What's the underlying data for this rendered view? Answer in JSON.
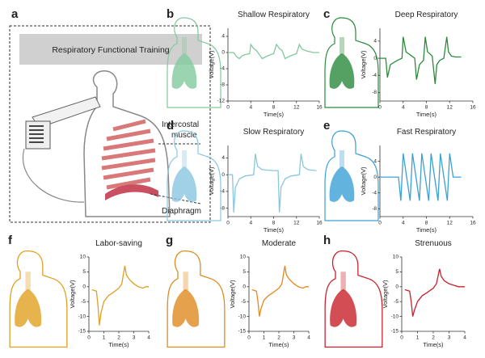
{
  "panel_labels": [
    "a",
    "b",
    "c",
    "d",
    "e",
    "f",
    "g",
    "h"
  ],
  "schematic": {
    "header": "Respiratory Functional Training",
    "muscle_label": [
      "Intercostal",
      "muscle"
    ],
    "diaphragm_label": "Diaphragm"
  },
  "chart_data": [
    {
      "type": "line",
      "title": "Shallow Respiratory",
      "xlabel": "Time(s)",
      "ylabel": "Voltage(V)",
      "color": "#82c99c",
      "x": [
        0,
        1,
        1.5,
        2,
        2.5,
        3,
        3.8,
        4,
        4.5,
        5,
        5.5,
        6,
        7,
        7.5,
        8,
        8.5,
        9,
        9.5,
        10,
        11,
        11.5,
        12,
        12.5,
        13,
        14,
        15,
        16
      ],
      "values": [
        0,
        0,
        -1,
        -1.5,
        -0.8,
        -0.5,
        -0.3,
        2,
        1,
        0.5,
        -0.5,
        -1.5,
        -0.8,
        -0.5,
        -0.3,
        2,
        1,
        0.5,
        -1.5,
        -0.8,
        -0.5,
        -0.3,
        2,
        0.8,
        0.3,
        0,
        0
      ],
      "xlim": [
        0,
        16
      ],
      "xticks": [
        0,
        4,
        8,
        12,
        16
      ],
      "ylim": [
        -12,
        6
      ],
      "yticks": [
        -12,
        -8,
        -4,
        0,
        4
      ]
    },
    {
      "type": "line",
      "title": "Deep Respiratory",
      "xlabel": "Time(s)",
      "ylabel": "Voltage(V)",
      "color": "#2a8a3c",
      "x": [
        0,
        1,
        1.3,
        1.8,
        3,
        3.8,
        4,
        4.5,
        5.5,
        6,
        6.3,
        6.8,
        7.5,
        7.8,
        8.2,
        9,
        9.5,
        9.8,
        10.3,
        11,
        11.5,
        11.8,
        12.3,
        13,
        14
      ],
      "values": [
        0,
        0,
        -4.5,
        -1.5,
        -0.5,
        0,
        5,
        1.5,
        0.5,
        0,
        -5,
        -1.5,
        -0.5,
        5,
        1.5,
        0.5,
        -6,
        -1.5,
        -0.5,
        0,
        5,
        1.5,
        0.5,
        0.3,
        0.3
      ],
      "xlim": [
        0,
        16
      ],
      "xticks": [
        0,
        4,
        8,
        12,
        16
      ],
      "ylim": [
        -10,
        7
      ],
      "yticks": [
        -8,
        -4,
        0,
        4
      ]
    },
    {
      "type": "line",
      "title": "Slow Respiratory",
      "xlabel": "Time(s)",
      "ylabel": "Voltage(V)",
      "color": "#8ac6e0",
      "x": [
        0,
        0.8,
        1,
        1.3,
        2,
        3,
        4.5,
        4.8,
        5.2,
        6,
        8,
        8.8,
        9,
        9.3,
        10,
        11,
        12.5,
        12.8,
        13.2,
        14,
        15.5
      ],
      "values": [
        0,
        0,
        -9,
        -3,
        -1,
        -0.3,
        0,
        5,
        2,
        1.2,
        1,
        1,
        -9,
        -3,
        -1,
        -0.3,
        0,
        5,
        2,
        1.2,
        1
      ],
      "xlim": [
        0,
        16
      ],
      "xticks": [
        0,
        4,
        8,
        12,
        16
      ],
      "ylim": [
        -10,
        7
      ],
      "yticks": [
        -8,
        -4,
        0,
        4
      ]
    },
    {
      "type": "line",
      "title": "Fast Respiratory",
      "xlabel": "Time(s)",
      "ylabel": "Voltage(V)",
      "color": "#3ba0d4",
      "x": [
        0,
        3.2,
        3.6,
        4,
        4.6,
        5.2,
        5.6,
        6.2,
        6.8,
        7.2,
        7.8,
        8.4,
        8.8,
        9.4,
        10,
        10.4,
        11,
        11.6,
        12,
        12.6,
        13.2,
        14
      ],
      "values": [
        0,
        0,
        -6,
        6,
        0,
        -6,
        6,
        0,
        -6,
        6,
        0,
        -6,
        6,
        0,
        -6,
        6,
        0,
        -6,
        6,
        0,
        0,
        0
      ],
      "xlim": [
        0,
        16
      ],
      "xticks": [
        0,
        4,
        8,
        12,
        16
      ],
      "ylim": [
        -10,
        8
      ],
      "yticks": [
        -8,
        -4,
        0,
        4
      ]
    },
    {
      "type": "line",
      "title": "Labor-saving",
      "xlabel": "Time(s)",
      "ylabel": "Voltage(V)",
      "color": "#e0a020",
      "x": [
        0.2,
        0.5,
        0.6,
        0.7,
        0.8,
        1,
        1.3,
        1.6,
        2,
        2.2,
        2.4,
        2.5,
        2.7,
        3,
        3.3,
        3.6,
        3.8,
        4
      ],
      "values": [
        -1,
        -1.5,
        -6,
        -13,
        -9,
        -5,
        -3,
        -2,
        -0.5,
        1,
        7,
        4,
        2.5,
        1,
        0,
        -0.5,
        0,
        0
      ],
      "xlim": [
        0,
        4
      ],
      "xticks": [
        0,
        1,
        2,
        3,
        4
      ],
      "ylim": [
        -15,
        10
      ],
      "yticks": [
        -15,
        -10,
        -5,
        0,
        5,
        10
      ]
    },
    {
      "type": "line",
      "title": "Moderate",
      "xlabel": "Time(s)",
      "ylabel": "Voltage(V)",
      "color": "#e08a20",
      "x": [
        0.2,
        0.5,
        0.6,
        0.7,
        0.8,
        1,
        1.3,
        1.6,
        2,
        2.2,
        2.4,
        2.5,
        2.7,
        3,
        3.3,
        3.6,
        3.8,
        4
      ],
      "values": [
        -1,
        -1.5,
        -5,
        -10,
        -7.5,
        -4.5,
        -3,
        -2,
        -0.5,
        1,
        7,
        4,
        2.5,
        1,
        0,
        -0.5,
        0,
        0
      ],
      "xlim": [
        0,
        4
      ],
      "xticks": [
        0,
        1,
        2,
        3,
        4
      ],
      "ylim": [
        -15,
        10
      ],
      "yticks": [
        -15,
        -10,
        -5,
        0,
        5,
        10
      ]
    },
    {
      "type": "line",
      "title": "Strenuous",
      "xlabel": "Time(s)",
      "ylabel": "Voltage(V)",
      "color": "#c8202a",
      "x": [
        0.2,
        0.5,
        0.6,
        0.7,
        0.8,
        1,
        1.3,
        1.6,
        2,
        2.2,
        2.4,
        2.5,
        2.7,
        3,
        3.3,
        3.6,
        3.8,
        4
      ],
      "values": [
        -1,
        -1.5,
        -5,
        -10,
        -8,
        -5,
        -3,
        -2,
        -0.5,
        1,
        6,
        3.5,
        2,
        1,
        0.5,
        0,
        0,
        0
      ],
      "xlim": [
        0,
        4
      ],
      "xticks": [
        0,
        1,
        2,
        3,
        4
      ],
      "ylim": [
        -15,
        10
      ],
      "yticks": [
        -15,
        -10,
        -5,
        0,
        5,
        10
      ]
    }
  ]
}
